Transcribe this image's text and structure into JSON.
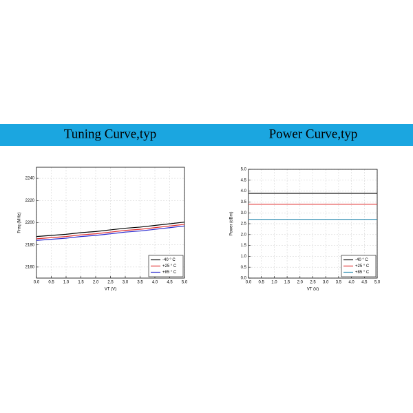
{
  "chart_data": [
    {
      "type": "line",
      "title": "Tuning Curve,typ",
      "xlabel": "VT (V)",
      "ylabel": "Freq (MHz)",
      "x": [
        0,
        0.5,
        1,
        1.5,
        2,
        2.5,
        3,
        3.5,
        4,
        4.5,
        5
      ],
      "series": [
        {
          "name": "-40 ° C",
          "color": "#000000",
          "values": [
            2187.5,
            2188.5,
            2189.5,
            2191,
            2192,
            2193.5,
            2195,
            2196,
            2197.5,
            2199,
            2200.5
          ]
        },
        {
          "name": "+25 ° C",
          "color": "#e03030",
          "values": [
            2185.5,
            2186.5,
            2187.5,
            2189,
            2190,
            2191.5,
            2193,
            2194,
            2195.5,
            2197,
            2198.5
          ]
        },
        {
          "name": "+85 ° C",
          "color": "#2a2ad0",
          "values": [
            2184,
            2185,
            2186,
            2187.5,
            2188.5,
            2190,
            2191.5,
            2192.5,
            2194,
            2195.5,
            2197
          ]
        }
      ],
      "xlim": [
        0,
        5
      ],
      "ylim": [
        2150,
        2250
      ],
      "xticks": [
        {
          "value": 0,
          "label": "0.0"
        },
        0.5,
        {
          "value": 1,
          "label": "1.0"
        },
        1.5,
        {
          "value": 2,
          "label": "2.0"
        },
        2.5,
        {
          "value": 3,
          "label": "3.0"
        },
        3.5,
        {
          "value": 4,
          "label": "4.0"
        },
        4.5,
        {
          "value": 5,
          "label": "5.0"
        }
      ],
      "yticks": [
        2160,
        2180,
        2200,
        2220,
        2240
      ],
      "grid": true,
      "legend": "lower right"
    },
    {
      "type": "line",
      "title": "Power Curve,typ",
      "xlabel": "VT (V)",
      "ylabel": "Power (dBm)",
      "x": [
        0,
        5
      ],
      "series": [
        {
          "name": "-40 ° C",
          "color": "#000000",
          "values": [
            3.9,
            3.9
          ]
        },
        {
          "name": "+25 ° C",
          "color": "#e03030",
          "values": [
            3.4,
            3.4
          ]
        },
        {
          "name": "+85 ° C",
          "color": "#2a8ab0",
          "values": [
            2.7,
            2.7
          ]
        }
      ],
      "xlim": [
        0,
        5
      ],
      "ylim": [
        0,
        5
      ],
      "xticks": [
        {
          "value": 0,
          "label": "0.0"
        },
        0.5,
        {
          "value": 1,
          "label": "1.0"
        },
        1.5,
        {
          "value": 2,
          "label": "2.0"
        },
        2.5,
        {
          "value": 3,
          "label": "3.0"
        },
        3.5,
        {
          "value": 4,
          "label": "4.0"
        },
        4.5,
        {
          "value": 5,
          "label": "5.0"
        }
      ],
      "yticks": [
        {
          "value": 0,
          "label": "0.0"
        },
        0.5,
        {
          "value": 1,
          "label": "1.0"
        },
        1.5,
        {
          "value": 2,
          "label": "2.0"
        },
        2.5,
        {
          "value": 3,
          "label": "3.0"
        },
        3.5,
        {
          "value": 4,
          "label": "4.0"
        },
        4.5,
        {
          "value": 5,
          "label": "5.0"
        }
      ],
      "grid": true,
      "legend": "lower right"
    }
  ]
}
